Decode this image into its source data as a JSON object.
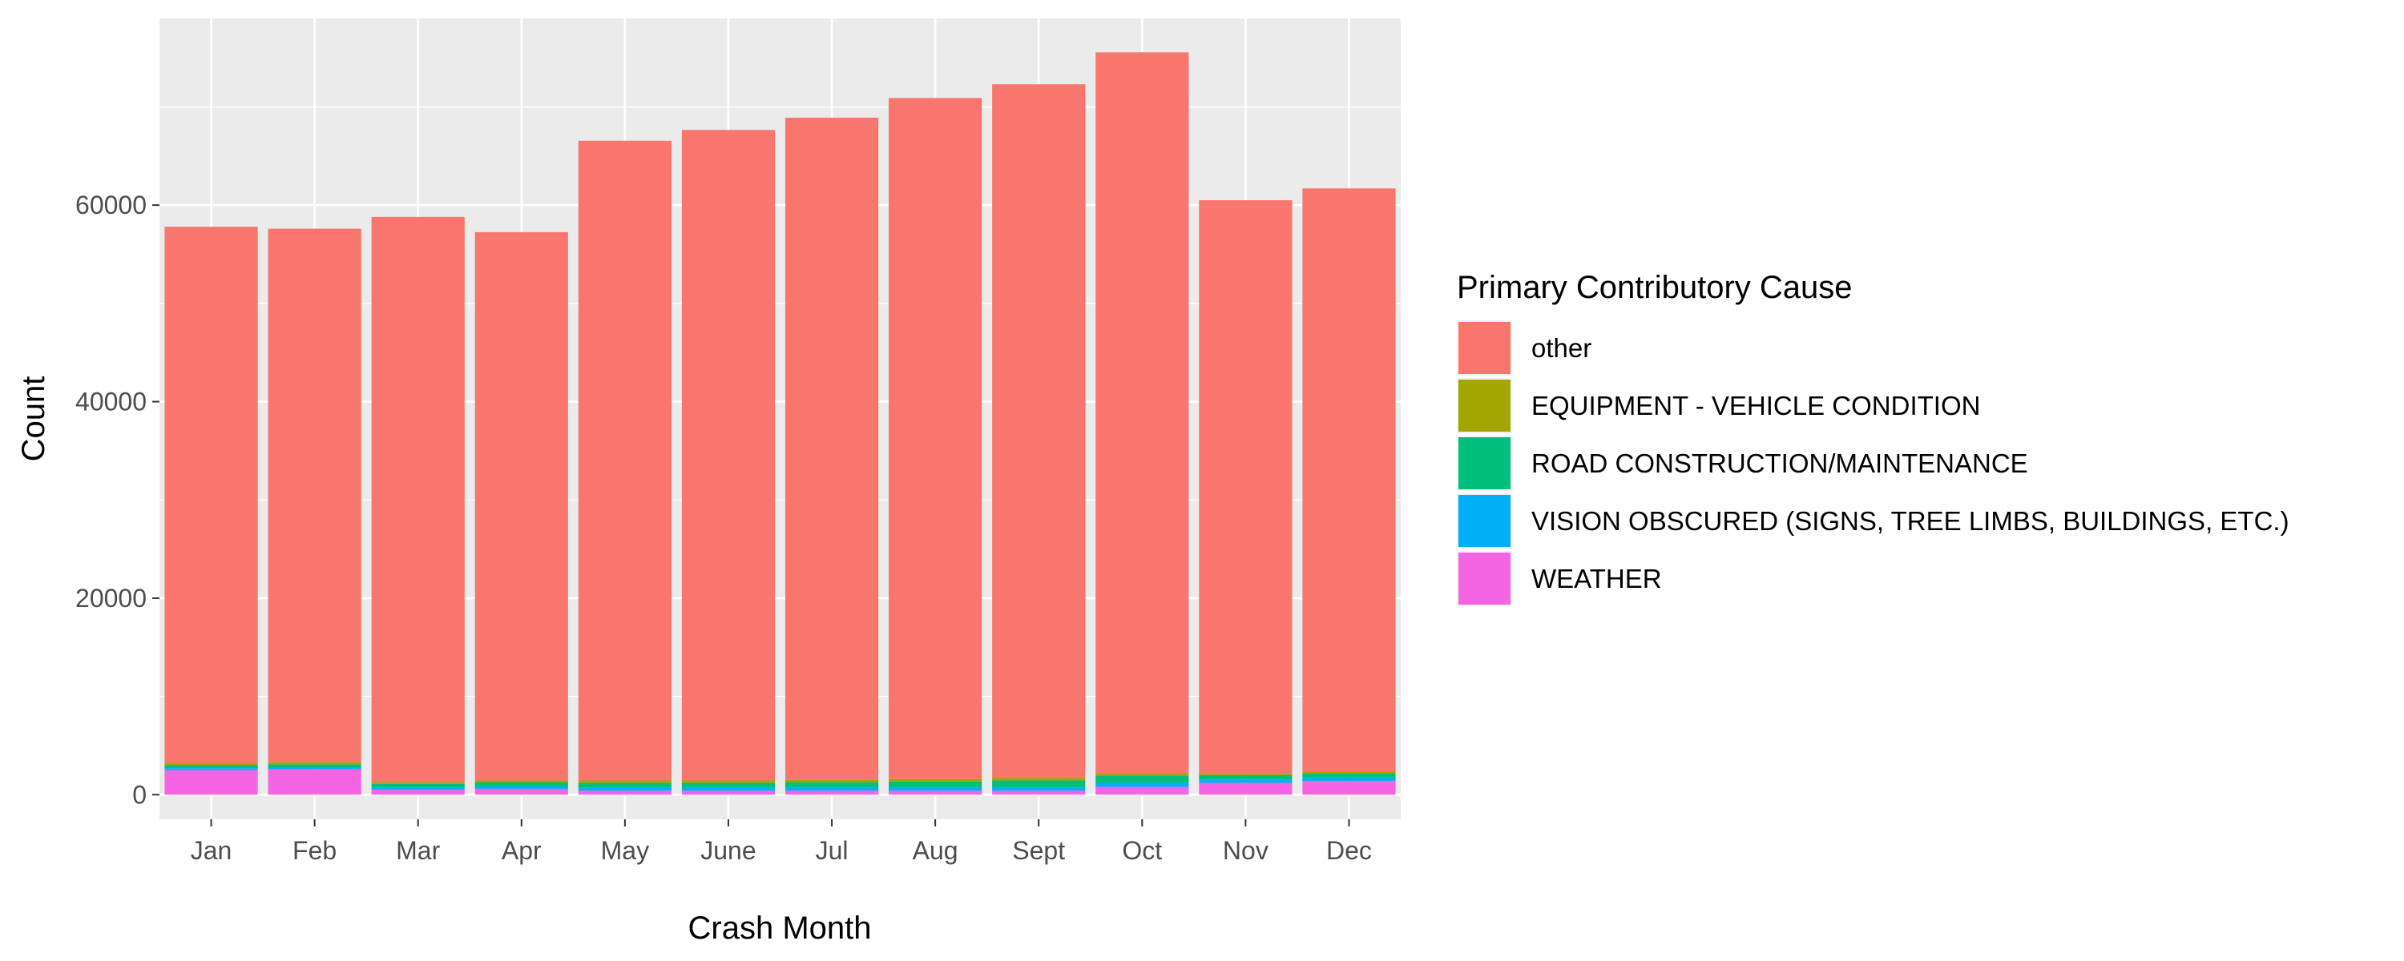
{
  "chart_data": {
    "type": "bar",
    "stacked": true,
    "title": "",
    "xlabel": "Crash Month",
    "ylabel": "Count",
    "ylim": [
      -2500,
      79000
    ],
    "yticks": [
      0,
      20000,
      40000,
      60000
    ],
    "categories": [
      "Jan",
      "Feb",
      "Mar",
      "Apr",
      "May",
      "June",
      "Jul",
      "Aug",
      "Sept",
      "Oct",
      "Nov",
      "Dec"
    ],
    "legend_title": "Primary Contributory Cause",
    "legend_position": "right",
    "grid": true,
    "series": [
      {
        "name": "WEATHER",
        "color": "#F564E3",
        "values": [
          2500,
          2600,
          500,
          600,
          400,
          400,
          400,
          400,
          400,
          800,
          1200,
          1400
        ]
      },
      {
        "name": "VISION OBSCURED (SIGNS, TREE LIMBS, BUILDINGS, ETC.)",
        "color": "#00B0F6",
        "values": [
          200,
          200,
          250,
          250,
          300,
          300,
          350,
          350,
          350,
          400,
          350,
          350
        ]
      },
      {
        "name": "ROAD CONSTRUCTION/MAINTENANCE",
        "color": "#00BF7D",
        "values": [
          300,
          300,
          350,
          400,
          500,
          500,
          500,
          600,
          700,
          700,
          450,
          400
        ]
      },
      {
        "name": "EQUIPMENT - VEHICLE CONDITION",
        "color": "#A3A500",
        "values": [
          200,
          200,
          200,
          200,
          250,
          250,
          250,
          250,
          250,
          250,
          200,
          200
        ]
      },
      {
        "name": "other",
        "color": "#F8766D",
        "values": [
          54600,
          54300,
          57500,
          55800,
          65100,
          66200,
          67400,
          69300,
          70600,
          73400,
          58300,
          59350
        ]
      }
    ],
    "legend_order": [
      "other",
      "EQUIPMENT - VEHICLE CONDITION",
      "ROAD CONSTRUCTION/MAINTENANCE",
      "VISION OBSCURED (SIGNS, TREE LIMBS, BUILDINGS, ETC.)",
      "WEATHER"
    ],
    "colors": {
      "panel_bg": "#EBEBEB",
      "grid": "#FFFFFF",
      "text": "#4D4D4D"
    }
  }
}
